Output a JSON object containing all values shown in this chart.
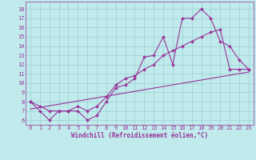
{
  "xlabel": "Windchill (Refroidissement éolien,°C)",
  "bg_color": "#c0eaec",
  "grid_color": "#a0d4d8",
  "line_color": "#993399",
  "x_ticks": [
    0,
    1,
    2,
    3,
    4,
    5,
    6,
    7,
    8,
    9,
    10,
    11,
    12,
    13,
    14,
    15,
    16,
    17,
    18,
    19,
    20,
    21,
    22,
    23
  ],
  "y_ticks": [
    6,
    7,
    8,
    9,
    10,
    11,
    12,
    13,
    14,
    15,
    16,
    17,
    18
  ],
  "xlim": [
    -0.5,
    23.5
  ],
  "ylim": [
    5.5,
    18.8
  ],
  "line1_x": [
    0,
    1,
    2,
    3,
    4,
    5,
    6,
    7,
    8,
    9,
    10,
    11,
    12,
    13,
    14,
    15,
    16,
    17,
    18,
    19,
    20,
    21,
    22,
    23
  ],
  "line1_y": [
    8.0,
    7.0,
    6.0,
    7.0,
    7.0,
    7.0,
    6.0,
    6.5,
    8.0,
    9.5,
    9.8,
    10.5,
    12.8,
    13.0,
    15.0,
    12.0,
    17.0,
    17.0,
    18.0,
    17.0,
    14.5,
    14.0,
    12.5,
    11.5
  ],
  "line2_x": [
    0,
    1,
    2,
    3,
    4,
    5,
    6,
    7,
    8,
    9,
    10,
    11,
    12,
    13,
    14,
    15,
    16,
    17,
    18,
    19,
    20,
    21,
    22,
    23
  ],
  "line2_y": [
    8.0,
    7.5,
    7.0,
    7.0,
    7.0,
    7.5,
    7.0,
    7.5,
    8.5,
    9.8,
    10.5,
    10.8,
    11.5,
    12.0,
    13.0,
    13.5,
    14.0,
    14.5,
    15.0,
    15.5,
    15.8,
    11.5,
    11.5,
    11.5
  ],
  "line3_x": [
    0,
    23
  ],
  "line3_y": [
    7.2,
    11.2
  ],
  "marker_size": 2.0,
  "line_width": 0.8,
  "tick_fontsize": 5.0,
  "xlabel_fontsize": 5.5
}
